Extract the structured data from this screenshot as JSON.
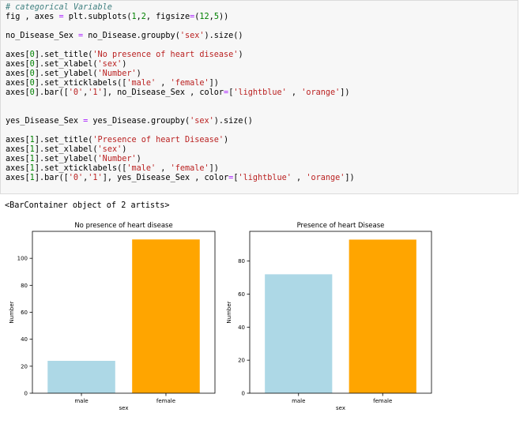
{
  "code_cell": {
    "lines": [
      [
        [
          "cm",
          "# categorical Variable"
        ]
      ],
      [
        [
          "",
          "fig , axes "
        ],
        [
          "op",
          "="
        ],
        [
          "",
          " plt.subplots("
        ],
        [
          "nu",
          "1"
        ],
        [
          "",
          ","
        ],
        [
          "nu",
          "2"
        ],
        [
          "",
          ", figsize"
        ],
        [
          "op",
          "="
        ],
        [
          "",
          "("
        ],
        [
          "nu",
          "12"
        ],
        [
          "",
          ","
        ],
        [
          "nu",
          "5"
        ],
        [
          "",
          "))"
        ]
      ],
      [
        [
          "",
          ""
        ]
      ],
      [
        [
          "",
          "no_Disease_Sex "
        ],
        [
          "op",
          "="
        ],
        [
          "",
          " no_Disease.groupby("
        ],
        [
          "st",
          "'sex'"
        ],
        [
          "",
          ").size()"
        ]
      ],
      [
        [
          "",
          ""
        ]
      ],
      [
        [
          "",
          "axes["
        ],
        [
          "nu",
          "0"
        ],
        [
          "",
          "].set_title("
        ],
        [
          "st",
          "'No presence of heart disease'"
        ],
        [
          "",
          ")"
        ]
      ],
      [
        [
          "",
          "axes["
        ],
        [
          "nu",
          "0"
        ],
        [
          "",
          "].set_xlabel("
        ],
        [
          "st",
          "'sex'"
        ],
        [
          "",
          ")"
        ]
      ],
      [
        [
          "",
          "axes["
        ],
        [
          "nu",
          "0"
        ],
        [
          "",
          "].set_ylabel("
        ],
        [
          "st",
          "'Number'"
        ],
        [
          "",
          ")"
        ]
      ],
      [
        [
          "",
          "axes["
        ],
        [
          "nu",
          "0"
        ],
        [
          "",
          "].set_xticklabels(["
        ],
        [
          "st",
          "'male'"
        ],
        [
          "",
          " , "
        ],
        [
          "st",
          "'female'"
        ],
        [
          "",
          "])"
        ]
      ],
      [
        [
          "",
          "axes["
        ],
        [
          "nu",
          "0"
        ],
        [
          "",
          "].bar(["
        ],
        [
          "st",
          "'0'"
        ],
        [
          "",
          ","
        ],
        [
          "st",
          "'1'"
        ],
        [
          "",
          "], no_Disease_Sex , color"
        ],
        [
          "op",
          "="
        ],
        [
          "",
          "["
        ],
        [
          "st",
          "'lightblue'"
        ],
        [
          "",
          " , "
        ],
        [
          "st",
          "'orange'"
        ],
        [
          "",
          "])"
        ]
      ],
      [
        [
          "",
          ""
        ]
      ],
      [
        [
          "",
          ""
        ]
      ],
      [
        [
          "",
          "yes_Disease_Sex "
        ],
        [
          "op",
          "="
        ],
        [
          "",
          " yes_Disease.groupby("
        ],
        [
          "st",
          "'sex'"
        ],
        [
          "",
          ").size()"
        ]
      ],
      [
        [
          "",
          ""
        ]
      ],
      [
        [
          "",
          "axes["
        ],
        [
          "nu",
          "1"
        ],
        [
          "",
          "].set_title("
        ],
        [
          "st",
          "'Presence of heart Disease'"
        ],
        [
          "",
          ")"
        ]
      ],
      [
        [
          "",
          "axes["
        ],
        [
          "nu",
          "1"
        ],
        [
          "",
          "].set_xlabel("
        ],
        [
          "st",
          "'sex'"
        ],
        [
          "",
          ")"
        ]
      ],
      [
        [
          "",
          "axes["
        ],
        [
          "nu",
          "1"
        ],
        [
          "",
          "].set_ylabel("
        ],
        [
          "st",
          "'Number'"
        ],
        [
          "",
          ")"
        ]
      ],
      [
        [
          "",
          "axes["
        ],
        [
          "nu",
          "1"
        ],
        [
          "",
          "].set_xticklabels(["
        ],
        [
          "st",
          "'male'"
        ],
        [
          "",
          " , "
        ],
        [
          "st",
          "'female'"
        ],
        [
          "",
          "])"
        ]
      ],
      [
        [
          "",
          "axes["
        ],
        [
          "nu",
          "1"
        ],
        [
          "",
          "].bar(["
        ],
        [
          "st",
          "'0'"
        ],
        [
          "",
          ","
        ],
        [
          "st",
          "'1'"
        ],
        [
          "",
          "], yes_Disease_Sex , color"
        ],
        [
          "op",
          "="
        ],
        [
          "",
          "["
        ],
        [
          "st",
          "'lightblue'"
        ],
        [
          "",
          " , "
        ],
        [
          "st",
          "'orange'"
        ],
        [
          "",
          "])"
        ]
      ]
    ]
  },
  "output_text": "<BarContainer object of 2 artists>",
  "chart_data": [
    {
      "type": "bar",
      "title": "No presence of heart disease",
      "xlabel": "sex",
      "ylabel": "Number",
      "categories": [
        "male",
        "female"
      ],
      "values": [
        24,
        114
      ],
      "colors": [
        "#add8e6",
        "#ffa500"
      ],
      "ylim": [
        0,
        120
      ],
      "yticks": [
        0,
        20,
        40,
        60,
        80,
        100
      ],
      "grid": false
    },
    {
      "type": "bar",
      "title": "Presence of heart Disease",
      "xlabel": "sex",
      "ylabel": "Number",
      "categories": [
        "male",
        "female"
      ],
      "values": [
        72,
        93
      ],
      "colors": [
        "#add8e6",
        "#ffa500"
      ],
      "ylim": [
        0,
        98
      ],
      "yticks": [
        0,
        20,
        40,
        60,
        80
      ],
      "grid": false
    }
  ]
}
